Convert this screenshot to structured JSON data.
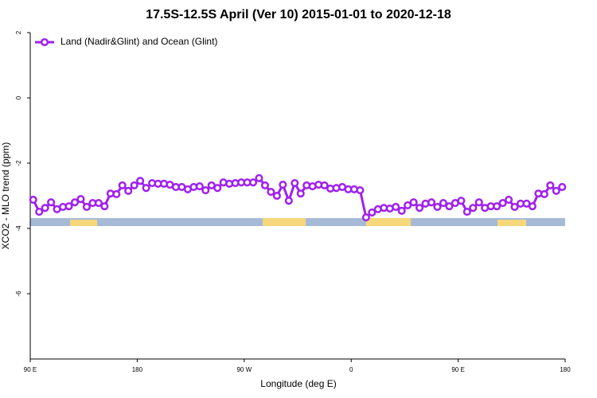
{
  "chart_data": {
    "type": "line",
    "title": "17.5S-12.5S April (Ver 10)   2015-01-01 to 2020-12-18",
    "xlabel": "Longitude (deg E)",
    "ylabel": "XCO2 - MLO trend (ppm)",
    "legend": "topleft",
    "x": [
      92.5,
      97.5,
      102.5,
      107.5,
      112.5,
      117.5,
      122.5,
      127.5,
      132.5,
      137.5,
      142.5,
      147.5,
      152.5,
      157.5,
      162.5,
      167.5,
      172.5,
      177.5,
      182.5,
      187.5,
      192.5,
      197.5,
      202.5,
      207.5,
      212.5,
      217.5,
      222.5,
      227.5,
      232.5,
      237.5,
      242.5,
      247.5,
      252.5,
      257.5,
      262.5,
      267.5,
      272.5,
      277.5,
      282.5,
      287.5,
      292.5,
      297.5,
      302.5,
      307.5,
      312.5,
      317.5,
      322.5,
      327.5,
      332.5,
      337.5,
      342.5,
      347.5,
      352.5,
      357.5,
      362.5,
      367.5,
      372.5,
      377.5,
      382.5,
      387.5,
      392.5,
      397.5,
      402.5,
      407.5,
      412.5,
      417.5,
      422.5,
      427.5,
      432.5,
      437.5,
      442.5,
      447.5,
      452.5,
      457.5,
      462.5,
      467.5,
      472.5,
      477.5,
      482.5,
      487.5,
      492.5,
      497.5,
      502.5,
      507.5,
      512.5,
      517.5,
      522.5,
      527.5,
      532.5,
      537.5
    ],
    "series": [
      {
        "name": "Land (Nadir&Glint) and Ocean (Glint)",
        "color": "#a020f0",
        "values": [
          -3.12,
          -3.49,
          -3.37,
          -3.2,
          -3.41,
          -3.34,
          -3.32,
          -3.2,
          -3.1,
          -3.34,
          -3.22,
          -3.22,
          -3.32,
          -2.93,
          -2.95,
          -2.68,
          -2.85,
          -2.68,
          -2.54,
          -2.76,
          -2.61,
          -2.63,
          -2.63,
          -2.66,
          -2.73,
          -2.73,
          -2.8,
          -2.73,
          -2.71,
          -2.83,
          -2.68,
          -2.76,
          -2.59,
          -2.63,
          -2.61,
          -2.59,
          -2.59,
          -2.59,
          -2.46,
          -2.68,
          -2.88,
          -3.0,
          -2.66,
          -3.15,
          -2.61,
          -2.93,
          -2.68,
          -2.71,
          -2.66,
          -2.68,
          -2.78,
          -2.76,
          -2.73,
          -2.8,
          -2.8,
          -2.83,
          -3.66,
          -3.51,
          -3.41,
          -3.37,
          -3.39,
          -3.34,
          -3.46,
          -3.29,
          -3.2,
          -3.37,
          -3.24,
          -3.2,
          -3.34,
          -3.22,
          -3.32,
          -3.22,
          -3.15,
          -3.49,
          -3.37,
          -3.2,
          -3.37,
          -3.32,
          -3.32,
          -3.22,
          -3.12,
          -3.34,
          -3.24,
          -3.24,
          -3.32,
          -2.93,
          -2.95,
          -2.68,
          -2.85,
          -2.73
        ]
      }
    ],
    "xlim": [
      90,
      540
    ],
    "xticks": [
      {
        "value": 90,
        "label": "90 E"
      },
      180,
      {
        "value": 270,
        "label": "90 W"
      },
      {
        "value": 360,
        "label": "0"
      },
      {
        "value": 450,
        "label": "90 E"
      },
      {
        "value": 540,
        "label": "180"
      }
    ],
    "ylim": [
      -8,
      2
    ],
    "yticks": [
      2,
      0,
      -2,
      -4,
      -6
    ]
  }
}
